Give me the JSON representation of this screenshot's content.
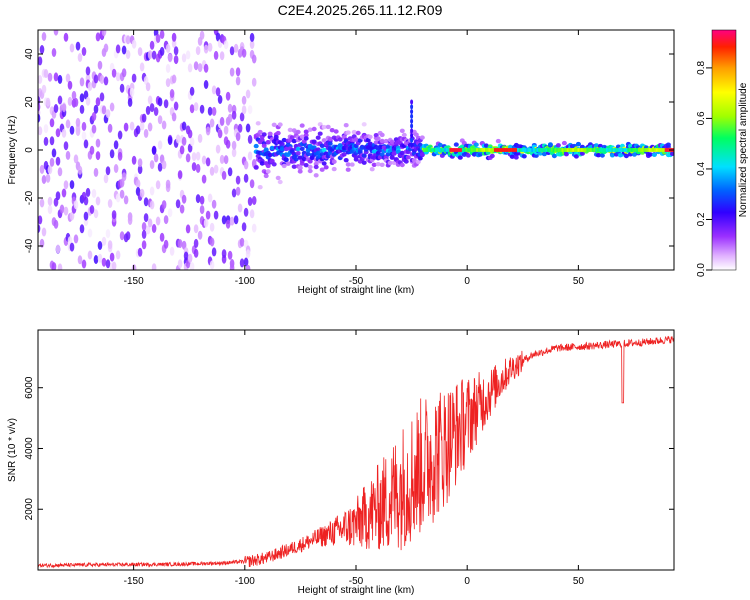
{
  "title": "C2E4.2025.265.11.12.R09",
  "chart_data": [
    {
      "type": "heatmap",
      "title": "C2E4.2025.265.11.12.R09",
      "xlabel": "Height of straight line (km)",
      "ylabel": "Frequency (Hz)",
      "xlim": [
        -193,
        93
      ],
      "ylim": [
        -50,
        50
      ],
      "x_ticks": [
        -150,
        -100,
        -50,
        0,
        50
      ],
      "x_tick_labels": [
        "-150",
        "-100",
        "-50",
        "0",
        "50"
      ],
      "y_ticks": [
        -40,
        -20,
        0,
        20,
        40
      ],
      "y_tick_labels": [
        "-40",
        "-20",
        "0",
        "20",
        "40"
      ],
      "colorbar": {
        "label": "Normalized spectral amplitude",
        "range": [
          0,
          0.95
        ],
        "ticks": [
          0.0,
          0.2,
          0.4,
          0.6,
          0.8
        ],
        "tick_labels": [
          "0.0",
          "0.2",
          "0.4",
          "0.6",
          "0.8"
        ],
        "colors": [
          "#ffffff",
          "#e0b0ff",
          "#9b30ff",
          "#3000ff",
          "#0060ff",
          "#00e0ff",
          "#00ff60",
          "#a0ff00",
          "#ffff00",
          "#ffa000",
          "#ff2000",
          "#ff0080"
        ]
      },
      "description_regions": [
        {
          "x_range": [
            -193,
            -95
          ],
          "freq_spread": 50,
          "amplitude": 0.15
        },
        {
          "x_range": [
            -95,
            -20
          ],
          "freq_spread": 8,
          "amplitude": 0.3
        },
        {
          "x_range": [
            -20,
            93
          ],
          "freq_spread": 2,
          "amplitude": 0.55
        }
      ]
    },
    {
      "type": "line",
      "xlabel": "Height of straight line (km)",
      "ylabel": "SNR (10 * v/v)",
      "xlim": [
        -193,
        93
      ],
      "ylim": [
        0,
        7900
      ],
      "x_ticks": [
        -150,
        -100,
        -50,
        0,
        50
      ],
      "x_tick_labels": [
        "-150",
        "-100",
        "-50",
        "0",
        "50"
      ],
      "y_ticks": [
        2000,
        4000,
        6000
      ],
      "y_tick_labels": [
        "2000",
        "4000",
        "6000"
      ],
      "series": [
        {
          "name": "SNR",
          "color": "#ee2222",
          "x": [
            -193,
            -170,
            -150,
            -130,
            -110,
            -100,
            -90,
            -80,
            -70,
            -60,
            -50,
            -45,
            -40,
            -35,
            -30,
            -25,
            -20,
            -15,
            -10,
            -5,
            0,
            5,
            10,
            15,
            20,
            25,
            30,
            40,
            50,
            60,
            70,
            80,
            93
          ],
          "y": [
            150,
            170,
            180,
            190,
            230,
            280,
            420,
            700,
            1000,
            1300,
            1600,
            1900,
            2200,
            2500,
            2900,
            3300,
            3700,
            4000,
            4300,
            4700,
            5100,
            5500,
            5900,
            6300,
            6700,
            6900,
            7100,
            7300,
            7350,
            7400,
            7450,
            7500,
            7600
          ]
        }
      ]
    }
  ]
}
